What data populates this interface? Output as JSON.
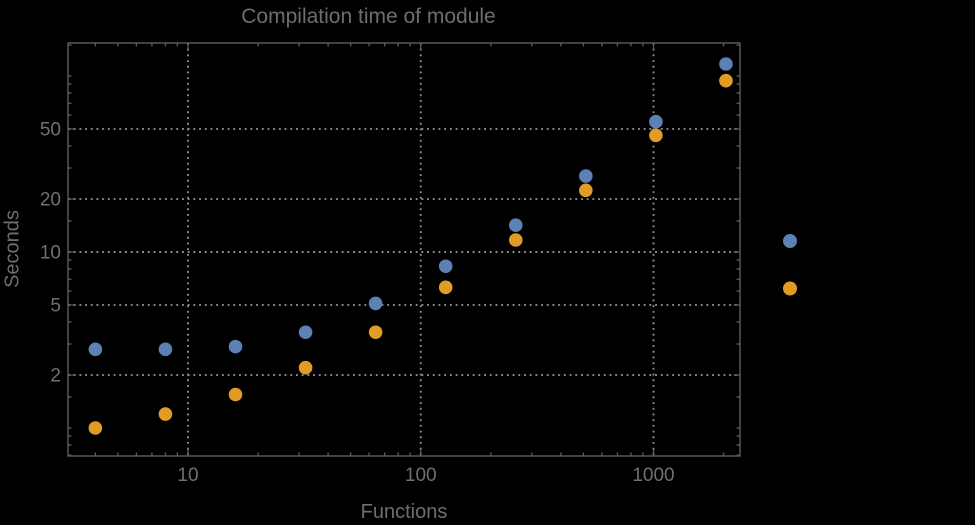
{
  "page": {
    "background": "#000000"
  },
  "styles": {
    "label_color": "#707070",
    "title_color": "#6e6e6e",
    "frame_color": "#5e5e5e",
    "grid_color": "#8c8c8c"
  },
  "chart_data": {
    "type": "scatter",
    "title": "Compilation time of module",
    "xlabel": "Functions",
    "ylabel": "Seconds",
    "x_scale": "log",
    "y_scale": "log",
    "x_range": [
      3.05,
      2330
    ],
    "y_range": [
      0.68,
      152
    ],
    "x": [
      4,
      8,
      16,
      32,
      64,
      128,
      256,
      512,
      1024,
      2048
    ],
    "series": [
      {
        "name": "blue-series",
        "color": "#5E81B5",
        "values": [
          2.8,
          2.8,
          2.9,
          3.5,
          5.1,
          8.3,
          14.2,
          27,
          55,
          117
        ]
      },
      {
        "name": "orange-series",
        "color": "#E19C24",
        "values": [
          1.0,
          1.2,
          1.55,
          2.2,
          3.5,
          6.3,
          11.7,
          22.4,
          46,
          94
        ]
      }
    ],
    "x_ticks": [
      {
        "value": 10,
        "label": "10"
      },
      {
        "value": 100,
        "label": "100"
      },
      {
        "value": 1000,
        "label": "1000"
      }
    ],
    "y_ticks": [
      {
        "value": 2,
        "label": "2"
      },
      {
        "value": 5,
        "label": "5"
      },
      {
        "value": 10,
        "label": "10"
      },
      {
        "value": 20,
        "label": "20"
      },
      {
        "value": 50,
        "label": "50"
      }
    ],
    "grid": {
      "style": "dotted",
      "on": true,
      "x_lines": [
        10,
        100,
        1000
      ],
      "y_lines": [
        2,
        5,
        10,
        20,
        50
      ]
    },
    "legend": {
      "position": "right-outside",
      "entries": [
        {
          "name": "blue-series",
          "color": "#5E81B5",
          "label": ""
        },
        {
          "name": "orange-series",
          "color": "#E19C24",
          "label": ""
        }
      ]
    }
  }
}
